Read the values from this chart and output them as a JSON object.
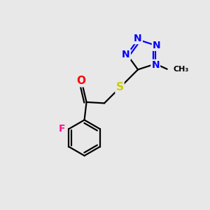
{
  "bg_color": "#e8e8e8",
  "bond_color": "#000000",
  "bond_width": 1.6,
  "atom_colors": {
    "N": "#0000ff",
    "S": "#cccc00",
    "O": "#ff0000",
    "F": "#ff1493",
    "C": "#000000"
  },
  "font_size": 9,
  "figsize": [
    3.0,
    3.0
  ],
  "dpi": 100
}
